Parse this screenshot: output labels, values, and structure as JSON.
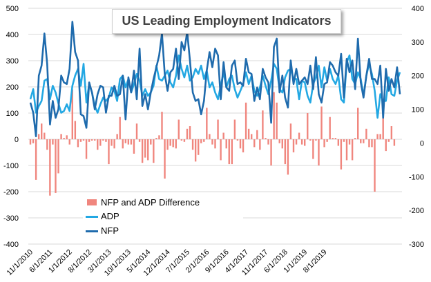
{
  "title": "US Leading Employment Indicators",
  "colors": {
    "nfp": "#1f6bad",
    "adp": "#23a8e3",
    "diff": "#f0867e",
    "grid": "#d9d9d9"
  },
  "chart_data": {
    "type": "bar+line",
    "title": "US Leading Employment Indicators",
    "start": "2010-11",
    "x_tick_labels": [
      "11/1/2010",
      "6/1/2011",
      "1/1/2012",
      "8/1/2012",
      "3/1/2013",
      "10/1/2013",
      "5/1/2014",
      "12/1/2014",
      "7/1/2015",
      "2/1/2016",
      "9/1/2016",
      "4/1/2017",
      "11/1/2017",
      "6/1/2018",
      "1/1/2019",
      "8/1/2019"
    ],
    "y_left": {
      "min": -400,
      "max": 500,
      "ticks": [
        "500",
        "400",
        "300",
        "200",
        "100",
        "0",
        "-100",
        "-200",
        "-300",
        "-400"
      ]
    },
    "y_right": {
      "min": -300,
      "max": 400,
      "ticks": [
        "400",
        "300",
        "200",
        "100",
        "0",
        "-100",
        "-200",
        "-300"
      ]
    },
    "legend": [
      "NFP and ADP Difference",
      "ADP",
      "NFP"
    ],
    "series": [
      {
        "name": "ADP",
        "axis": "right",
        "values": [
          130,
          160,
          90,
          110,
          125,
          185,
          190,
          130,
          170,
          150,
          118,
          90,
          95,
          115,
          95,
          170,
          200,
          220,
          170,
          235,
          120,
          175,
          150,
          110,
          90,
          115,
          135,
          125,
          135,
          165,
          155,
          125,
          190,
          200,
          165,
          190,
          150,
          175,
          205,
          185,
          140,
          160,
          140,
          150,
          170,
          230,
          190,
          185,
          200,
          215,
          180,
          165,
          200,
          260,
          220,
          195,
          230,
          185,
          195,
          220,
          205,
          230,
          190,
          215,
          165,
          180,
          150,
          130,
          170,
          210,
          165,
          190,
          200,
          160,
          135,
          155,
          175,
          210,
          175,
          200,
          155,
          140,
          165,
          200,
          170,
          145,
          185,
          235,
          220,
          160,
          150,
          195,
          215,
          220,
          190,
          190,
          130,
          185,
          180,
          140,
          120,
          175,
          195,
          230,
          165,
          225,
          185,
          220,
          190,
          175,
          200,
          130,
          120,
          240,
          260,
          190,
          175,
          210,
          190,
          140,
          200,
          235,
          205,
          155,
          75,
          145,
          125,
          125,
          195,
          145,
          140,
          185,
          210
        ]
      },
      {
        "name": "NFP",
        "axis": "right",
        "values": [
          120,
          90,
          20,
          200,
          230,
          325,
          235,
          55,
          125,
          75,
          100,
          200,
          180,
          175,
          220,
          360,
          270,
          245,
          85,
          80,
          45,
          180,
          150,
          100,
          145,
          170,
          165,
          90,
          140,
          140,
          170,
          140,
          145,
          200,
          70,
          195,
          150,
          215,
          130,
          280,
          110,
          145,
          100,
          150,
          190,
          225,
          260,
          325,
          205,
          155,
          210,
          220,
          280,
          190,
          300,
          275,
          330,
          245,
          150,
          125,
          130,
          85,
          125,
          215,
          270,
          225,
          280,
          260,
          130,
          240,
          165,
          155,
          230,
          245,
          175,
          180,
          170,
          250,
          210,
          205,
          125,
          165,
          130,
          220,
          195,
          180,
          60,
          285,
          310,
          150,
          200,
          135,
          105,
          245,
          175,
          220,
          175,
          185,
          195,
          175,
          230,
          160,
          255,
          145,
          120,
          175,
          180,
          240,
          230,
          210,
          200,
          265,
          135,
          250,
          210,
          245,
          160,
          310,
          180,
          135,
          200,
          250,
          190,
          190,
          175,
          230,
          75,
          220,
          155,
          190,
          165,
          225,
          145
        ]
      },
      {
        "name": "NFP and ADP Difference",
        "axis": "left",
        "values": [
          -20,
          -15,
          -155,
          20,
          60,
          25,
          -40,
          -215,
          -20,
          -205,
          -130,
          20,
          5,
          15,
          -20,
          190,
          70,
          -30,
          -10,
          -5,
          -75,
          -10,
          -5,
          -5,
          -40,
          -25,
          -5,
          -10,
          -95,
          -25,
          -35,
          20,
          85,
          -35,
          -15,
          -20,
          -20,
          -55,
          60,
          -10,
          -90,
          -70,
          -80,
          -20,
          -90,
          5,
          15,
          105,
          -150,
          -40,
          -25,
          -30,
          -35,
          75,
          -5,
          -10,
          40,
          50,
          -40,
          -85,
          -60,
          -15,
          -10,
          120,
          20,
          -20,
          -35,
          75,
          -80,
          25,
          -35,
          -95,
          -95,
          75,
          -5,
          -35,
          -50,
          140,
          40,
          20,
          -30,
          35,
          -40,
          110,
          5,
          -20,
          -100,
          180,
          140,
          -15,
          -35,
          -95,
          -135,
          60,
          -50,
          -20,
          25,
          -20,
          -25,
          100,
          -5,
          -75,
          -5,
          -100,
          125,
          -30,
          -10,
          85,
          5,
          5,
          -25,
          -115,
          -10,
          -80,
          -20,
          -80,
          5,
          120,
          -15,
          -15,
          40,
          -30,
          -30,
          -200,
          20,
          20,
          85,
          -45,
          -10,
          50,
          -25
        ]
      }
    ]
  }
}
